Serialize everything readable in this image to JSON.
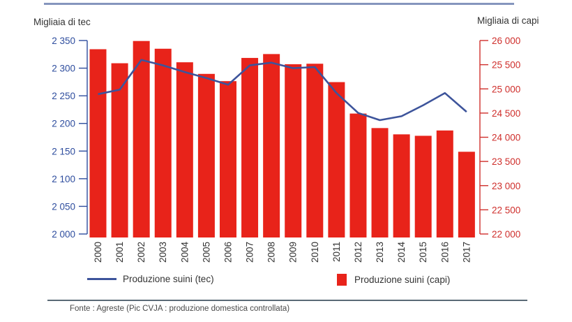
{
  "header": {
    "left_axis_title": "Migliaia di tec",
    "right_axis_title": "Migliaia di capi"
  },
  "chart_data": {
    "type": "bar",
    "title": "",
    "categories": [
      "2000",
      "2001",
      "2002",
      "2003",
      "2004",
      "2005",
      "2006",
      "2007",
      "2008",
      "2009",
      "2010",
      "2011",
      "2012",
      "2013",
      "2014",
      "2015",
      "2016",
      "2017"
    ],
    "series": [
      {
        "name": "Produzione suini (tec)",
        "type": "line",
        "axis": "left",
        "color": "#3d549b",
        "values": [
          2253,
          2261,
          2315,
          2305,
          2293,
          2282,
          2270,
          2305,
          2310,
          2300,
          2302,
          2255,
          2219,
          2206,
          2213,
          2233,
          2255,
          2221
        ]
      },
      {
        "name": "Produzione suini (capi)",
        "type": "bar",
        "axis": "right",
        "color": "#e8231a",
        "values": [
          25820,
          25530,
          25990,
          25830,
          25550,
          25310,
          25160,
          25640,
          25720,
          25510,
          25520,
          25140,
          24490,
          24190,
          24060,
          24030,
          24140,
          23700
        ]
      }
    ],
    "left_axis": {
      "title": "Migliaia di tec",
      "min": 2000,
      "max": 2350,
      "tick_step": 50,
      "tick_labels": [
        "2 350",
        "2 300",
        "2 250",
        "2 200",
        "2 150",
        "2 100",
        "2 050",
        "2 000"
      ],
      "color": "#2e4d9e"
    },
    "right_axis": {
      "title": "Migliaia di capi",
      "min": 22000,
      "max": 26000,
      "tick_step": 500,
      "tick_labels": [
        "26 000",
        "25 500",
        "25 000",
        "24 500",
        "24 000",
        "23 500",
        "23 000",
        "22 500",
        "22 000"
      ],
      "color": "#cf2f2c"
    },
    "grid": false,
    "legend_position": "bottom",
    "x_labels_rotated": true
  },
  "legend": {
    "items": [
      {
        "label": "Produzione suini (tec)",
        "swatch": "line",
        "color": "#3d549b"
      },
      {
        "label": "Produzione suini (capi)",
        "swatch": "square",
        "color": "#e8231a"
      }
    ]
  },
  "footer": {
    "source": "Fonte : Agreste (Pic CVJA : produzione domestica controllata)"
  }
}
